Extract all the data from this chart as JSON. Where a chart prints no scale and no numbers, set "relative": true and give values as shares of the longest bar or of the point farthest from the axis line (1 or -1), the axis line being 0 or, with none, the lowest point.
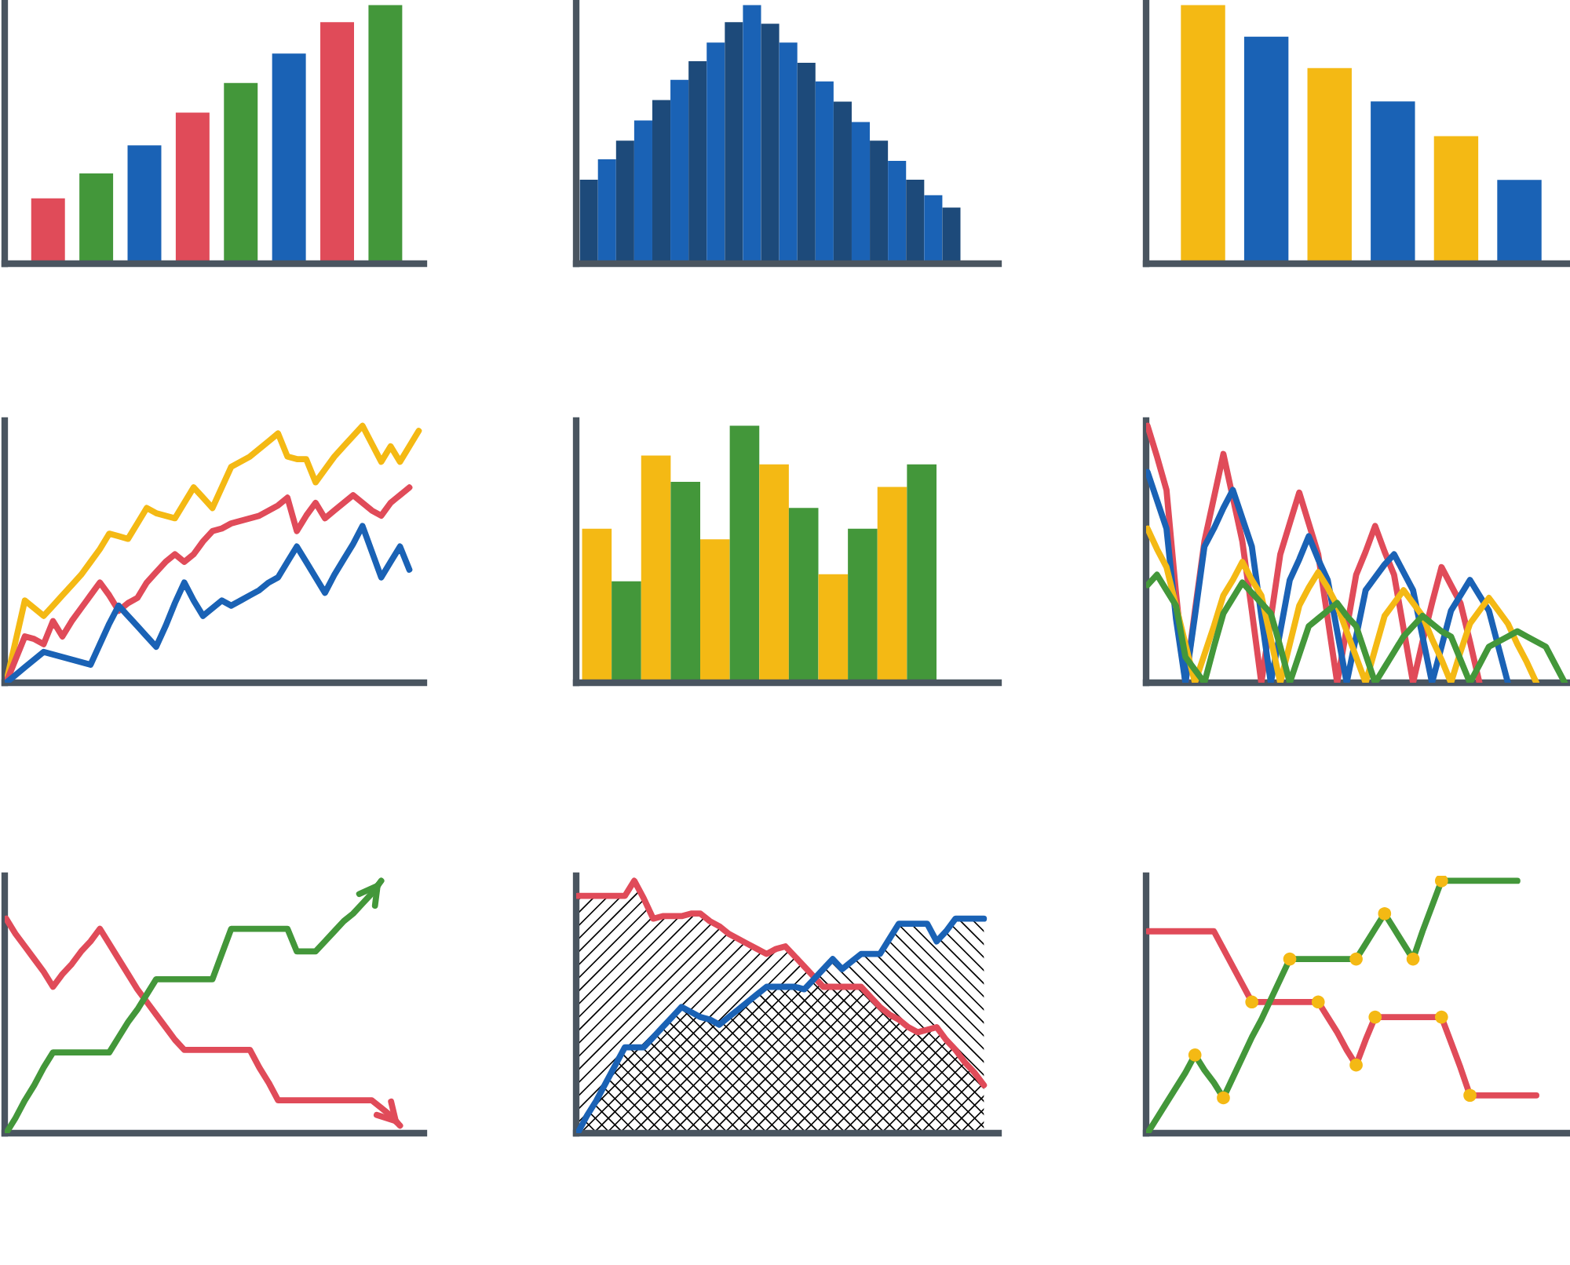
{
  "chart_data": [
    {
      "type": "bar",
      "relative": true,
      "categories": [
        null,
        null,
        null,
        null,
        null,
        null,
        null,
        null
      ],
      "values": [
        0.253,
        0.349,
        0.458,
        0.584,
        0.699,
        0.813,
        0.934,
        1
      ],
      "colors": [
        "#e04b59",
        "#43973a",
        "#1a62b5",
        "#e04b59",
        "#43973a",
        "#1a62b5",
        "#e04b59",
        "#43973a"
      ]
    },
    {
      "type": "bar",
      "relative": true,
      "categories": [
        null,
        null,
        null,
        null,
        null,
        null,
        null,
        null,
        null,
        null,
        null,
        null,
        null,
        null,
        null,
        null,
        null,
        null,
        null,
        null,
        null
      ],
      "values": [
        0.325,
        0.404,
        0.476,
        0.554,
        0.633,
        0.711,
        0.783,
        0.855,
        0.934,
        1,
        0.928,
        0.855,
        0.777,
        0.705,
        0.627,
        0.548,
        0.476,
        0.398,
        0.325,
        0.265,
        0.217
      ],
      "colors": [
        "#1d4a7a",
        "#1a62b5",
        "#1d4a7a",
        "#1a62b5",
        "#1d4a7a",
        "#1a62b5",
        "#1d4a7a",
        "#1a62b5",
        "#1d4a7a",
        "#1a62b5",
        "#1d4a7a",
        "#1a62b5",
        "#1d4a7a",
        "#1a62b5",
        "#1d4a7a",
        "#1a62b5",
        "#1d4a7a",
        "#1a62b5",
        "#1d4a7a",
        "#1a62b5",
        "#1d4a7a"
      ]
    },
    {
      "type": "bar",
      "relative": true,
      "categories": [
        null,
        null,
        null,
        null,
        null,
        null
      ],
      "values": [
        1,
        0.878,
        0.757,
        0.628,
        0.493,
        0.324
      ],
      "colors": [
        "#f4b914",
        "#1a62b5",
        "#f4b914",
        "#1a62b5",
        "#f4b914",
        "#1a62b5"
      ]
    },
    {
      "type": "line",
      "relative": true,
      "categories": [
        null,
        null,
        null,
        null,
        null,
        null,
        null,
        null,
        null,
        null,
        null,
        null,
        null,
        null,
        null,
        null,
        null,
        null,
        null,
        null,
        null,
        null,
        null,
        null,
        null,
        null,
        null,
        null,
        null,
        null,
        null,
        null,
        null,
        null,
        null,
        null,
        null,
        null,
        null,
        null,
        null,
        null,
        null,
        null,
        null
      ],
      "series": [
        {
          "color": "#f4b914",
          "values": [
            0,
            0.16,
            0.32,
            0.29,
            0.26,
            0.3,
            0.34,
            0.38,
            0.42,
            0.47,
            0.52,
            0.58,
            0.57,
            0.56,
            0.62,
            0.68,
            0.66,
            0.65,
            0.64,
            0.7,
            0.76,
            0.72,
            0.68,
            0.76,
            0.84,
            0.86,
            0.88,
            0.91,
            0.94,
            0.97,
            0.88,
            0.87,
            0.87,
            0.78,
            0.83,
            0.88,
            0.92,
            0.96,
            1.0,
            0.93,
            0.86,
            0.92,
            0.86,
            0.92,
            0.98
          ]
        },
        {
          "color": "#e04b59",
          "values": [
            0,
            0.09,
            0.18,
            0.17,
            0.15,
            0.24,
            0.18,
            0.24,
            0.29,
            0.34,
            0.39,
            0.34,
            0.28,
            0.31,
            0.33,
            0.39,
            0.43,
            0.47,
            0.5,
            0.47,
            0.5,
            0.55,
            0.59,
            0.6,
            0.62,
            0.63,
            0.64,
            0.65,
            0.67,
            0.69,
            0.72,
            0.59,
            0.65,
            0.7,
            0.64,
            0.67,
            0.7,
            0.73,
            0.7,
            0.67,
            0.65,
            0.7,
            0.73,
            0.76,
            null
          ]
        },
        {
          "color": "#1a62b5",
          "values": [
            0,
            0.03,
            0.06,
            0.09,
            0.12,
            0.11,
            0.1,
            0.09,
            0.08,
            0.07,
            0.15,
            0.23,
            0.3,
            0.26,
            0.22,
            0.18,
            0.14,
            0.22,
            0.31,
            0.39,
            0.32,
            0.26,
            0.29,
            0.32,
            0.3,
            0.32,
            0.34,
            0.36,
            0.39,
            0.41,
            0.47,
            0.53,
            0.47,
            0.41,
            0.35,
            0.42,
            0.48,
            0.54,
            0.61,
            0.51,
            0.41,
            0.47,
            0.53,
            0.44,
            null
          ]
        }
      ]
    },
    {
      "type": "bar",
      "relative": true,
      "categories": [
        null,
        null,
        null,
        null,
        null,
        null,
        null,
        null,
        null,
        null,
        null,
        null
      ],
      "values": [
        0.599,
        0.395,
        0.884,
        0.782,
        0.558,
        1,
        0.85,
        0.68,
        0.422,
        0.599,
        0.762,
        0.85
      ],
      "colors": [
        "#f4b914",
        "#43973a",
        "#f4b914",
        "#43973a",
        "#f4b914",
        "#43973a",
        "#f4b914",
        "#43973a",
        "#f4b914",
        "#43973a",
        "#f4b914",
        "#43973a"
      ]
    },
    {
      "type": "line",
      "relative": true,
      "categories": [
        null,
        null,
        null,
        null,
        null,
        null,
        null,
        null,
        null,
        null,
        null,
        null,
        null,
        null,
        null,
        null,
        null,
        null,
        null,
        null,
        null,
        null,
        null,
        null,
        null,
        null,
        null,
        null,
        null,
        null,
        null,
        null,
        null,
        null,
        null,
        null,
        null,
        null,
        null,
        null,
        null,
        null,
        null,
        null,
        null
      ],
      "series": [
        {
          "color": "#e04b59",
          "values": [
            1.0,
            0.88,
            0.75,
            0.35,
            0,
            0.28,
            0.55,
            0.72,
            0.89,
            0.72,
            0.55,
            0.28,
            0,
            0.25,
            0.5,
            0.62,
            0.74,
            0.62,
            0.5,
            0.25,
            0,
            0.21,
            0.42,
            0.51,
            0.61,
            0.51,
            0.42,
            0.21,
            0,
            0.16,
            0.31,
            0.45,
            0.38,
            0.31,
            0.16,
            0,
            null,
            null,
            null,
            null,
            null,
            null,
            null,
            null,
            null
          ]
        },
        {
          "color": "#1a62b5",
          "values": [
            0.82,
            0.71,
            0.6,
            0.25,
            0,
            0.26,
            0.53,
            0.6,
            0.68,
            0.75,
            0.64,
            0.53,
            0.26,
            0,
            0.2,
            0.4,
            0.48,
            0.57,
            0.48,
            0.4,
            0.2,
            0,
            0.18,
            0.36,
            0.41,
            0.46,
            0.5,
            0.43,
            0.36,
            0.18,
            0,
            0.14,
            0.28,
            0.34,
            0.4,
            0.34,
            0.28,
            0.14,
            0,
            null,
            null,
            null,
            null,
            null,
            null
          ]
        },
        {
          "color": "#f4b914",
          "values": [
            0.6,
            0.52,
            0.45,
            0.3,
            0.15,
            0,
            0.11,
            0.22,
            0.34,
            0.4,
            0.47,
            0.4,
            0.34,
            0.17,
            0,
            0.15,
            0.3,
            0.37,
            0.43,
            0.37,
            0.3,
            0.2,
            0.1,
            0,
            0.13,
            0.26,
            0.31,
            0.36,
            0.31,
            0.26,
            0.17,
            0.09,
            0,
            0.12,
            0.23,
            0.28,
            0.33,
            0.28,
            0.23,
            0.15,
            0.08,
            0,
            null,
            null,
            null
          ]
        },
        {
          "color": "#43973a",
          "values": [
            0.38,
            0.42,
            0.36,
            0.3,
            0.1,
            0.05,
            0,
            0.14,
            0.27,
            0.33,
            0.39,
            0.35,
            0.31,
            0.27,
            0.14,
            0,
            0.11,
            0.22,
            0.25,
            0.28,
            0.31,
            0.26,
            0.22,
            0.11,
            0,
            0.06,
            0.12,
            0.18,
            0.22,
            0.26,
            0.23,
            0.2,
            0.18,
            0.09,
            0,
            0.07,
            0.14,
            0.16,
            0.18,
            0.2,
            0.18,
            0.16,
            0.14,
            0.07,
            0
          ]
        }
      ]
    },
    {
      "type": "line",
      "relative": true,
      "categories": [
        null,
        null,
        null,
        null,
        null,
        null,
        null,
        null,
        null,
        null,
        null,
        null,
        null,
        null,
        null,
        null,
        null,
        null,
        null,
        null,
        null,
        null,
        null,
        null,
        null,
        null,
        null,
        null,
        null,
        null,
        null,
        null,
        null,
        null,
        null,
        null,
        null,
        null,
        null,
        null,
        null,
        null,
        null,
        null,
        null
      ],
      "series": [
        {
          "color": "#e04b59",
          "values": [
            0.85,
            0.79,
            0.74,
            0.69,
            0.64,
            0.58,
            0.63,
            0.67,
            0.72,
            0.76,
            0.81,
            0.75,
            0.69,
            0.63,
            0.57,
            0.52,
            0.47,
            0.42,
            0.37,
            0.33,
            0.33,
            0.33,
            0.33,
            0.33,
            0.33,
            0.33,
            0.33,
            0.26,
            0.2,
            0.13,
            0.13,
            0.13,
            0.13,
            0.13,
            0.13,
            0.13,
            0.13,
            0.13,
            0.13,
            0.13,
            0.1,
            0.07,
            0.03,
            null,
            null
          ]
        },
        {
          "color": "#43973a",
          "values": [
            0,
            0.06,
            0.13,
            0.19,
            0.26,
            0.32,
            0.32,
            0.32,
            0.32,
            0.32,
            0.32,
            0.32,
            0.38,
            0.44,
            0.49,
            0.55,
            0.61,
            0.61,
            0.61,
            0.61,
            0.61,
            0.61,
            0.61,
            0.71,
            0.81,
            0.81,
            0.81,
            0.81,
            0.81,
            0.81,
            0.81,
            0.72,
            0.72,
            0.72,
            0.76,
            0.8,
            0.84,
            0.87,
            0.91,
            0.95,
            1.0,
            null,
            null,
            null,
            null
          ]
        }
      ]
    },
    {
      "type": "area",
      "relative": true,
      "categories": [
        null,
        null,
        null,
        null,
        null,
        null,
        null,
        null,
        null,
        null,
        null,
        null,
        null,
        null,
        null,
        null,
        null,
        null,
        null,
        null,
        null,
        null,
        null,
        null,
        null,
        null,
        null,
        null,
        null,
        null,
        null,
        null,
        null,
        null,
        null,
        null,
        null,
        null,
        null,
        null,
        null,
        null,
        null,
        null,
        null
      ],
      "series": [
        {
          "color": "#e04b59",
          "values": [
            0.94,
            0.94,
            0.94,
            0.94,
            0.94,
            0.94,
            1.0,
            0.93,
            0.85,
            0.86,
            0.86,
            0.86,
            0.87,
            0.87,
            0.84,
            0.82,
            0.79,
            0.77,
            0.75,
            0.73,
            0.71,
            0.73,
            0.74,
            0.7,
            0.66,
            0.62,
            0.58,
            0.58,
            0.58,
            0.58,
            0.58,
            0.54,
            0.5,
            0.47,
            0.45,
            0.42,
            0.4,
            0.41,
            0.42,
            0.37,
            0.33,
            0.28,
            0.24,
            0.19,
            null
          ]
        },
        {
          "color": "#1a62b5",
          "values": [
            0,
            0.07,
            0.13,
            0.2,
            0.27,
            0.34,
            0.34,
            0.34,
            0.38,
            0.42,
            0.46,
            0.5,
            0.48,
            0.46,
            0.45,
            0.43,
            0.46,
            0.49,
            0.52,
            0.55,
            0.58,
            0.58,
            0.58,
            0.58,
            0.57,
            0.61,
            0.65,
            0.69,
            0.65,
            0.68,
            0.71,
            0.71,
            0.71,
            0.77,
            0.83,
            0.83,
            0.83,
            0.83,
            0.76,
            0.8,
            0.85,
            0.85,
            0.85,
            0.85,
            null
          ]
        }
      ]
    },
    {
      "type": "line",
      "relative": true,
      "categories": [
        null,
        null,
        null,
        null,
        null,
        null,
        null,
        null,
        null,
        null,
        null,
        null,
        null,
        null,
        null,
        null,
        null,
        null,
        null,
        null,
        null,
        null,
        null,
        null,
        null,
        null,
        null,
        null,
        null,
        null,
        null,
        null,
        null,
        null,
        null,
        null,
        null,
        null,
        null,
        null,
        null,
        null,
        null,
        null,
        null
      ],
      "series": [
        {
          "color": "#e04b59",
          "values": [
            0.8,
            0.8,
            0.8,
            0.8,
            0.8,
            0.8,
            0.8,
            0.8,
            0.73,
            0.66,
            0.59,
            0.52,
            0.52,
            0.52,
            0.52,
            0.52,
            0.52,
            0.52,
            0.52,
            0.46,
            0.4,
            0.33,
            0.27,
            0.37,
            0.46,
            0.46,
            0.46,
            0.46,
            0.46,
            0.46,
            0.46,
            0.46,
            0.36,
            0.26,
            0.15,
            0.15,
            0.15,
            0.15,
            0.15,
            0.15,
            0.15,
            0.15,
            null,
            null,
            null
          ]
        },
        {
          "color": "#43973a",
          "values": [
            0,
            0.06,
            0.12,
            0.18,
            0.24,
            0.31,
            0.25,
            0.2,
            0.14,
            0.22,
            0.3,
            0.38,
            0.45,
            0.53,
            0.61,
            0.69,
            0.69,
            0.69,
            0.69,
            0.69,
            0.69,
            0.69,
            0.69,
            0.75,
            0.81,
            0.87,
            0.81,
            0.75,
            0.69,
            0.8,
            0.9,
            1.0,
            1.0,
            1.0,
            1.0,
            1.0,
            1.0,
            1.0,
            1.0,
            1.0,
            null,
            null,
            null,
            null,
            null
          ]
        },
        {
          "type": "scatter",
          "color": "#f4b914",
          "values": [
            null,
            null,
            null,
            null,
            null,
            null,
            null,
            null,
            null,
            null,
            null,
            0.52,
            null,
            null,
            null,
            null,
            null,
            null,
            0.52,
            null,
            null,
            null,
            0.27,
            null,
            0.46,
            null,
            null,
            null,
            null,
            null,
            null,
            0.46,
            null,
            null,
            0.15,
            null,
            null,
            null,
            null,
            null,
            null,
            null,
            null,
            null,
            null
          ]
        },
        {
          "type": "scatter",
          "color": "#f4b914",
          "values": [
            null,
            null,
            null,
            null,
            null,
            0.31,
            null,
            null,
            0.14,
            null,
            null,
            null,
            null,
            null,
            null,
            0.69,
            null,
            null,
            null,
            null,
            null,
            null,
            0.69,
            null,
            null,
            0.87,
            null,
            null,
            0.69,
            null,
            null,
            1.0,
            null,
            null,
            null,
            null,
            null,
            null,
            null,
            null,
            null,
            null,
            null,
            null,
            null
          ]
        }
      ]
    }
  ]
}
